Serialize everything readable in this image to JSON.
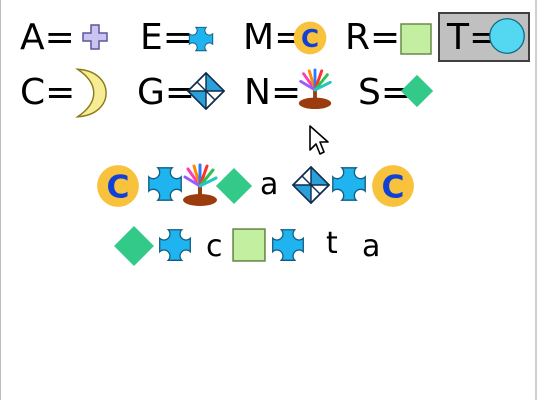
{
  "legend": {
    "A": {
      "letter": "A",
      "eq": "=",
      "icon": "lavender-plus-icon",
      "color": "#c9c5f0"
    },
    "E": {
      "letter": "E",
      "eq": "=",
      "icon": "blue-notched-square-icon",
      "color": "#1fb3f0"
    },
    "M": {
      "letter": "M",
      "eq": "=",
      "icon": "orange-c-circle-icon",
      "color": "#f9c23c"
    },
    "R": {
      "letter": "R",
      "eq": "=",
      "icon": "green-square-icon",
      "color": "#c2f0a0"
    },
    "T": {
      "letter": "T",
      "eq": "=",
      "icon": "cyan-circle-icon",
      "color": "#54d8f2",
      "selected": true
    },
    "C": {
      "letter": "C",
      "eq": "=",
      "icon": "yellow-crescent-icon",
      "color": "#f6ec93"
    },
    "G": {
      "letter": "G",
      "eq": "=",
      "icon": "split-diamond-icon",
      "color": "#2a9fd8"
    },
    "N": {
      "letter": "N",
      "eq": "=",
      "icon": "tree-icon",
      "color": "#9b3c0f"
    },
    "S": {
      "letter": "S",
      "eq": "=",
      "icon": "green-diamond-icon",
      "color": "#33c989"
    }
  },
  "puzzle": {
    "line1_letters": [
      "a"
    ],
    "line2_letters": [
      "c",
      "t",
      "a"
    ]
  }
}
